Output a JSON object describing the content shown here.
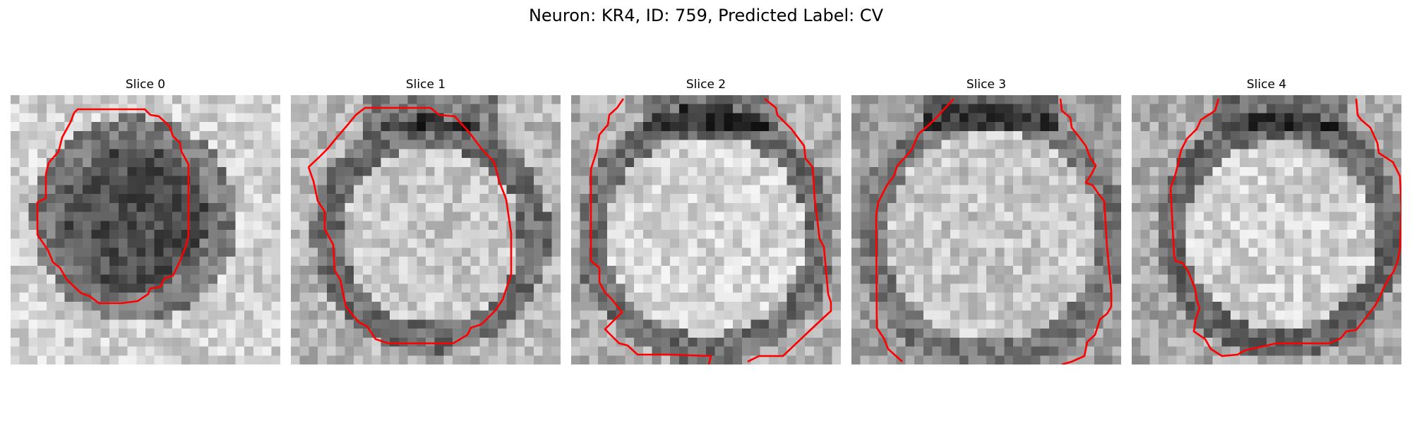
{
  "figure": {
    "title": "Neuron: KR4, ID: 759, Predicted Label: CV"
  },
  "slices": [
    {
      "title": "Slice 0",
      "appearance": "dark-center"
    },
    {
      "title": "Slice 1",
      "appearance": "bright-center"
    },
    {
      "title": "Slice 2",
      "appearance": "bright-center"
    },
    {
      "title": "Slice 3",
      "appearance": "bright-center"
    },
    {
      "title": "Slice 4",
      "appearance": "bright-center"
    }
  ],
  "colors": {
    "contour": "#ff0000",
    "background": "#ffffff"
  }
}
